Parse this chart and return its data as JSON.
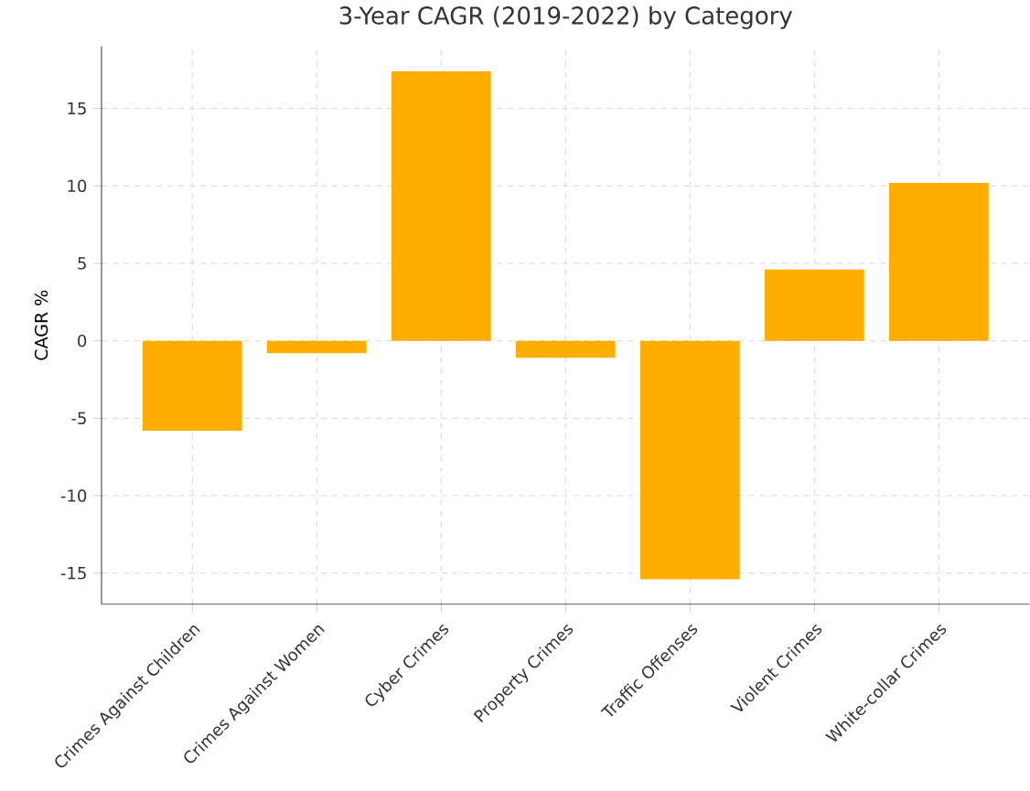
{
  "chart_data": {
    "type": "bar",
    "title": "3-Year CAGR (2019-2022) by Category",
    "ylabel": "CAGR %",
    "categories": [
      "Crimes Against Children",
      "Crimes Against Women",
      "Cyber Crimes",
      "Property Crimes",
      "Traffic Offenses",
      "Violent Crimes",
      "White-collar Crimes"
    ],
    "values": [
      -5.8,
      -0.8,
      17.4,
      -1.1,
      -15.4,
      4.6,
      10.2
    ],
    "color": "#ffae00",
    "ylim": [
      -17,
      19
    ],
    "yticks": [
      -15,
      -10,
      -5,
      0,
      5,
      10,
      15
    ],
    "grid": true
  }
}
